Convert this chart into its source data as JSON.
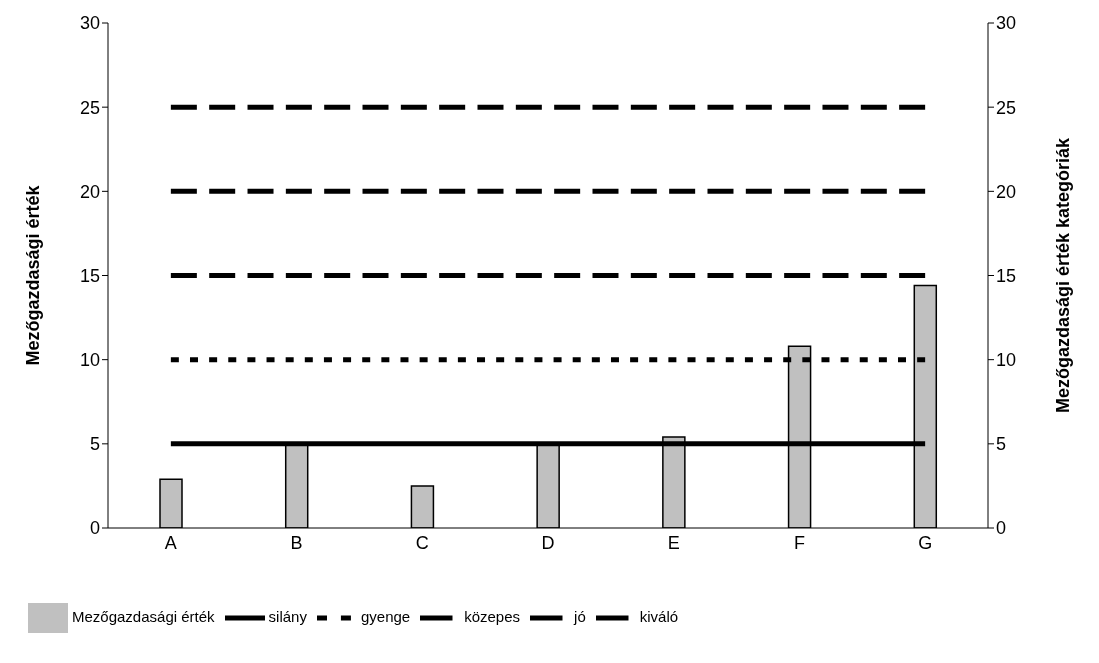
{
  "chart_data": {
    "type": "bar",
    "categories": [
      "A",
      "B",
      "C",
      "D",
      "E",
      "F",
      "G"
    ],
    "ylabel": "Mezőgazdasági érték",
    "y2label": "Mezőgazdasági érték kategóriák",
    "ylim": [
      0,
      30
    ],
    "yticks": [
      0,
      5,
      10,
      15,
      20,
      25,
      30
    ],
    "y2lim": [
      0,
      30
    ],
    "y2ticks": [
      0,
      5,
      10,
      15,
      20,
      25,
      30
    ],
    "grid": false,
    "legend": "bottom",
    "series": [
      {
        "name": "Mezőgazdasági érték",
        "color": "#c0c0c0",
        "values": [
          2.9,
          5,
          2.5,
          5,
          5.4,
          10.8,
          14.4
        ]
      },
      {
        "name": "silány",
        "type": "line",
        "color": "#000000",
        "line_style": "solid",
        "values": [
          5,
          5,
          5,
          5,
          5,
          5,
          5
        ]
      },
      {
        "name": "gyenge",
        "type": "line",
        "color": "#000000",
        "line_style": "dotted",
        "values": [
          10,
          10,
          10,
          10,
          10,
          10,
          10
        ]
      },
      {
        "name": "közepes",
        "type": "line",
        "color": "#000000",
        "line_style": "dashed",
        "values": [
          15,
          15,
          15,
          15,
          15,
          15,
          15
        ]
      },
      {
        "name": "jó",
        "type": "line",
        "color": "#000000",
        "line_style": "dashed",
        "values": [
          20,
          20,
          20,
          20,
          20,
          20,
          20
        ]
      },
      {
        "name": "kiváló",
        "type": "line",
        "color": "#000000",
        "line_style": "dashed",
        "values": [
          25,
          25,
          25,
          25,
          25,
          25,
          25
        ]
      }
    ]
  }
}
